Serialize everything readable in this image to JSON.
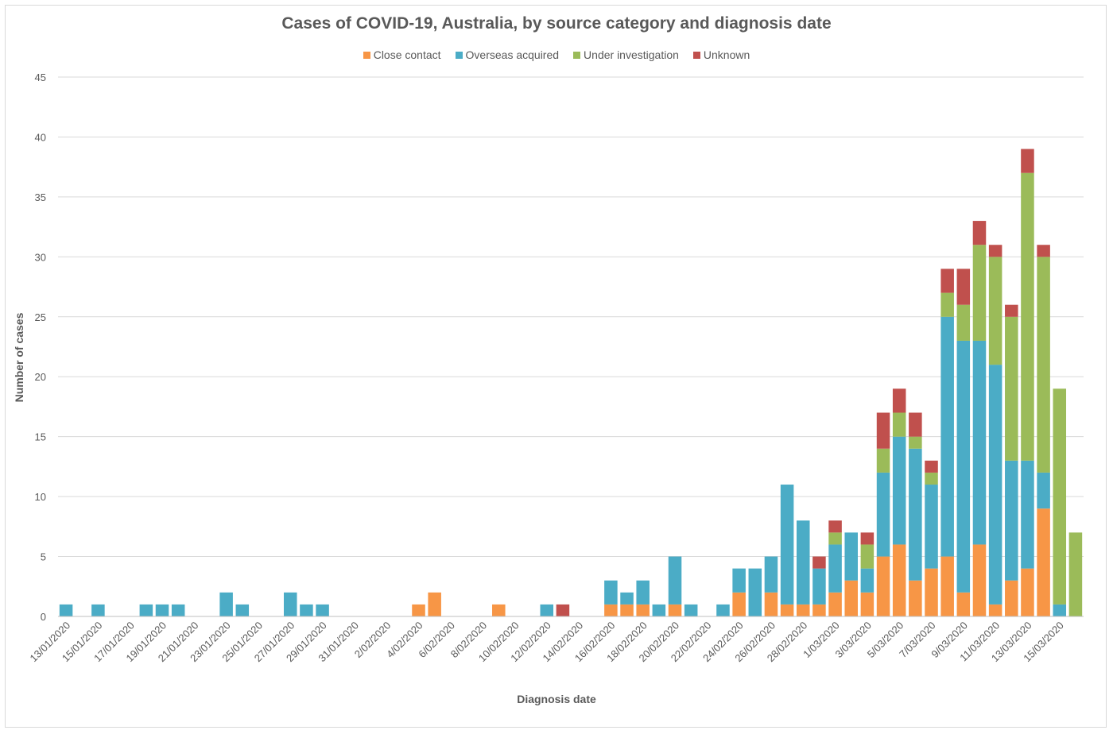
{
  "chart_data": {
    "type": "bar",
    "stacked": true,
    "title": "Cases of COVID-19, Australia, by source category and diagnosis date",
    "xlabel": "Diagnosis date",
    "ylabel": "Number of cases",
    "ylim": [
      0,
      45
    ],
    "yticks": [
      0,
      5,
      10,
      15,
      20,
      25,
      30,
      35,
      40,
      45
    ],
    "grid": true,
    "legend_position": "top",
    "colors": {
      "Close contact": "#f79646",
      "Overseas acquired": "#4bacc6",
      "Under investigation": "#9bbb59",
      "Unknown": "#c0504d"
    },
    "categories": [
      "13/01/2020",
      "14/01/2020",
      "15/01/2020",
      "16/01/2020",
      "17/01/2020",
      "18/01/2020",
      "19/01/2020",
      "20/01/2020",
      "21/01/2020",
      "22/01/2020",
      "23/01/2020",
      "24/01/2020",
      "25/01/2020",
      "26/01/2020",
      "27/01/2020",
      "28/01/2020",
      "29/01/2020",
      "30/01/2020",
      "31/01/2020",
      "1/02/2020",
      "2/02/2020",
      "3/02/2020",
      "4/02/2020",
      "5/02/2020",
      "6/02/2020",
      "7/02/2020",
      "8/02/2020",
      "9/02/2020",
      "10/02/2020",
      "11/02/2020",
      "12/02/2020",
      "13/02/2020",
      "14/02/2020",
      "15/02/2020",
      "16/02/2020",
      "17/02/2020",
      "18/02/2020",
      "19/02/2020",
      "20/02/2020",
      "21/02/2020",
      "22/02/2020",
      "23/02/2020",
      "24/02/2020",
      "25/02/2020",
      "26/02/2020",
      "27/02/2020",
      "28/02/2020",
      "29/02/2020",
      "1/03/2020",
      "2/03/2020",
      "3/03/2020",
      "4/03/2020",
      "5/03/2020",
      "6/03/2020",
      "7/03/2020",
      "8/03/2020",
      "9/03/2020",
      "10/03/2020",
      "11/03/2020",
      "12/03/2020",
      "13/03/2020",
      "14/03/2020",
      "15/03/2020",
      "16/03/2020"
    ],
    "tick_labels": [
      "13/01/2020",
      "15/01/2020",
      "17/01/2020",
      "19/01/2020",
      "21/01/2020",
      "23/01/2020",
      "25/01/2020",
      "27/01/2020",
      "29/01/2020",
      "31/01/2020",
      "2/02/2020",
      "4/02/2020",
      "6/02/2020",
      "8/02/2020",
      "10/02/2020",
      "12/02/2020",
      "14/02/2020",
      "16/02/2020",
      "18/02/2020",
      "20/02/2020",
      "22/02/2020",
      "24/02/2020",
      "26/02/2020",
      "28/02/2020",
      "1/03/2020",
      "3/03/2020",
      "5/03/2020",
      "7/03/2020",
      "9/03/2020",
      "11/03/2020",
      "13/03/2020",
      "15/03/2020"
    ],
    "series": [
      {
        "name": "Close contact",
        "values": [
          0,
          0,
          0,
          0,
          0,
          0,
          0,
          0,
          0,
          0,
          0,
          0,
          0,
          0,
          0,
          0,
          0,
          0,
          0,
          0,
          0,
          0,
          1,
          2,
          0,
          0,
          0,
          1,
          0,
          0,
          0,
          0,
          0,
          0,
          1,
          1,
          1,
          0,
          1,
          0,
          0,
          0,
          2,
          0,
          2,
          1,
          1,
          1,
          2,
          3,
          2,
          5,
          6,
          3,
          4,
          5,
          2,
          6,
          1,
          3,
          4,
          9,
          0,
          0
        ]
      },
      {
        "name": "Overseas acquired",
        "values": [
          1,
          0,
          1,
          0,
          0,
          1,
          1,
          1,
          0,
          0,
          2,
          1,
          0,
          0,
          2,
          1,
          1,
          0,
          0,
          0,
          0,
          0,
          0,
          0,
          0,
          0,
          0,
          0,
          0,
          0,
          1,
          0,
          0,
          0,
          2,
          1,
          2,
          1,
          4,
          1,
          0,
          1,
          2,
          4,
          3,
          10,
          7,
          3,
          4,
          4,
          2,
          7,
          9,
          11,
          7,
          20,
          21,
          17,
          20,
          10,
          9,
          3,
          1,
          0
        ]
      },
      {
        "name": "Under investigation",
        "values": [
          0,
          0,
          0,
          0,
          0,
          0,
          0,
          0,
          0,
          0,
          0,
          0,
          0,
          0,
          0,
          0,
          0,
          0,
          0,
          0,
          0,
          0,
          0,
          0,
          0,
          0,
          0,
          0,
          0,
          0,
          0,
          0,
          0,
          0,
          0,
          0,
          0,
          0,
          0,
          0,
          0,
          0,
          0,
          0,
          0,
          0,
          0,
          0,
          1,
          0,
          2,
          2,
          2,
          1,
          1,
          2,
          3,
          8,
          9,
          12,
          24,
          18,
          18,
          7
        ]
      },
      {
        "name": "Unknown",
        "values": [
          0,
          0,
          0,
          0,
          0,
          0,
          0,
          0,
          0,
          0,
          0,
          0,
          0,
          0,
          0,
          0,
          0,
          0,
          0,
          0,
          0,
          0,
          0,
          0,
          0,
          0,
          0,
          0,
          0,
          0,
          0,
          1,
          0,
          0,
          0,
          0,
          0,
          0,
          0,
          0,
          0,
          0,
          0,
          0,
          0,
          0,
          0,
          1,
          1,
          0,
          1,
          3,
          2,
          2,
          1,
          2,
          3,
          2,
          1,
          1,
          2,
          1,
          0,
          0
        ]
      }
    ]
  }
}
